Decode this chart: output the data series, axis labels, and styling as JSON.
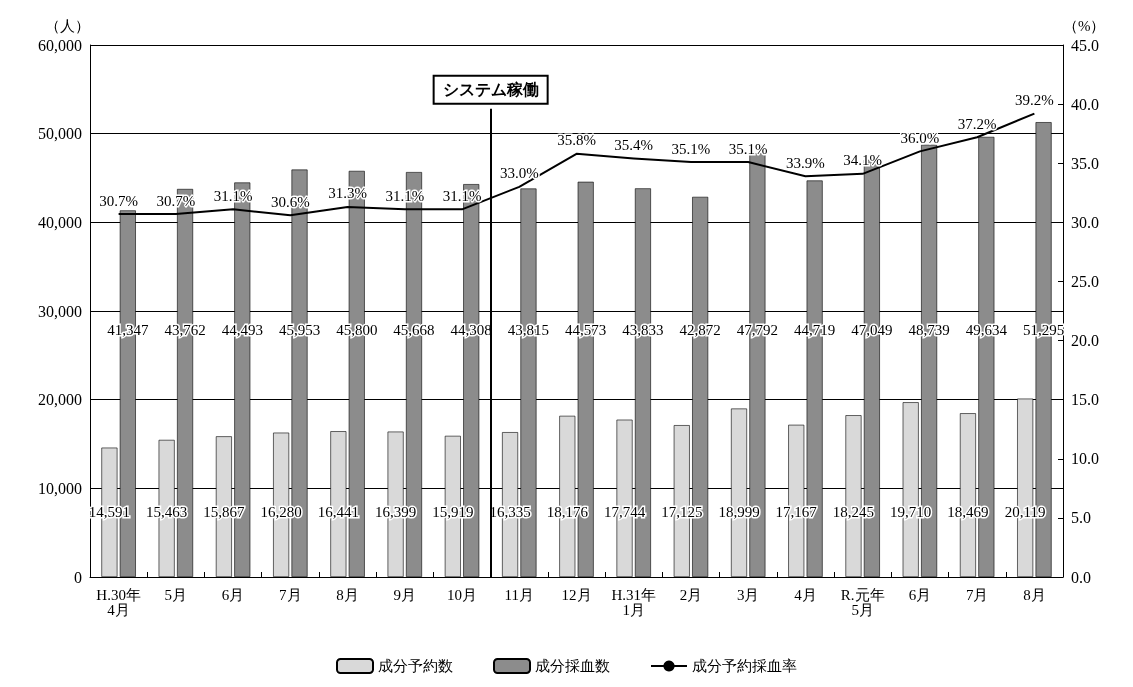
{
  "chart_data": {
    "type": "bar",
    "categories": [
      "H.30年\n4月",
      "5月",
      "6月",
      "7月",
      "8月",
      "9月",
      "10月",
      "11月",
      "12月",
      "H.31年\n1月",
      "2月",
      "3月",
      "4月",
      "R.元年\n5月",
      "6月",
      "7月",
      "8月"
    ],
    "ylabel": "（人）",
    "y2label": "（%）",
    "series": [
      {
        "name": "成分予約数",
        "color": "#d9d9d9",
        "values": [
          14591,
          15463,
          15867,
          16280,
          16441,
          16399,
          15919,
          16335,
          18176,
          17744,
          17125,
          18999,
          17167,
          18245,
          19710,
          18469,
          20119
        ],
        "value_labels": [
          "14,591",
          "15,463",
          "15,867",
          "16,280",
          "16,441",
          "16,399",
          "15,919",
          "16,335",
          "18,176",
          "17,744",
          "17,125",
          "18,999",
          "17,167",
          "18,245",
          "19,710",
          "18,469",
          "20,119"
        ]
      },
      {
        "name": "成分採血数",
        "color": "#8c8c8c",
        "values": [
          41347,
          43762,
          44493,
          45953,
          45800,
          45668,
          44308,
          43815,
          44573,
          43833,
          42872,
          47792,
          44719,
          47049,
          48739,
          49634,
          51295
        ],
        "value_labels": [
          "41,347",
          "43,762",
          "44,493",
          "45,953",
          "45,800",
          "45,668",
          "44,308",
          "43,815",
          "44,573",
          "43,833",
          "42,872",
          "47,792",
          "44,719",
          "47,049",
          "48,739",
          "49,634",
          "51,295"
        ]
      },
      {
        "name": "成分予約採血率",
        "type": "line",
        "axis": "y2",
        "color": "#000000",
        "values": [
          30.7,
          30.7,
          31.1,
          30.6,
          31.3,
          31.1,
          31.1,
          33.0,
          35.8,
          35.4,
          35.1,
          35.1,
          33.9,
          34.1,
          36.0,
          37.2,
          39.2
        ],
        "value_labels": [
          "30.7%",
          "30.7%",
          "31.1%",
          "30.6%",
          "31.3%",
          "31.1%",
          "31.1%",
          "33.0%",
          "35.8%",
          "35.4%",
          "35.1%",
          "35.1%",
          "33.9%",
          "34.1%",
          "36.0%",
          "37.2%",
          "39.2%"
        ]
      }
    ],
    "ylim": [
      0,
      60000
    ],
    "yticks": [
      {
        "value": 0,
        "label": "0"
      },
      {
        "value": 10000,
        "label": "10,000"
      },
      {
        "value": 20000,
        "label": "20,000"
      },
      {
        "value": 30000,
        "label": "30,000"
      },
      {
        "value": 40000,
        "label": "40,000"
      },
      {
        "value": 50000,
        "label": "50,000"
      },
      {
        "value": 60000,
        "label": "60,000"
      }
    ],
    "y2lim": [
      0,
      45
    ],
    "y2ticks": [
      {
        "value": 0,
        "label": "0.0"
      },
      {
        "value": 5,
        "label": "5.0"
      },
      {
        "value": 10,
        "label": "10.0"
      },
      {
        "value": 15,
        "label": "15.0"
      },
      {
        "value": 20,
        "label": "20.0"
      },
      {
        "value": 25,
        "label": "25.0"
      },
      {
        "value": 30,
        "label": "30.0"
      },
      {
        "value": 35,
        "label": "35.0"
      },
      {
        "value": 40,
        "label": "40.0"
      },
      {
        "value": 45,
        "label": "45.0"
      }
    ],
    "ref_lines": [
      {
        "axis": "x",
        "value": "11月",
        "label": "システム稼働",
        "color": "#000000",
        "line_style": "solid"
      }
    ],
    "grid": "y",
    "legend": "bottom",
    "marker": "none",
    "line_style": "solid"
  }
}
